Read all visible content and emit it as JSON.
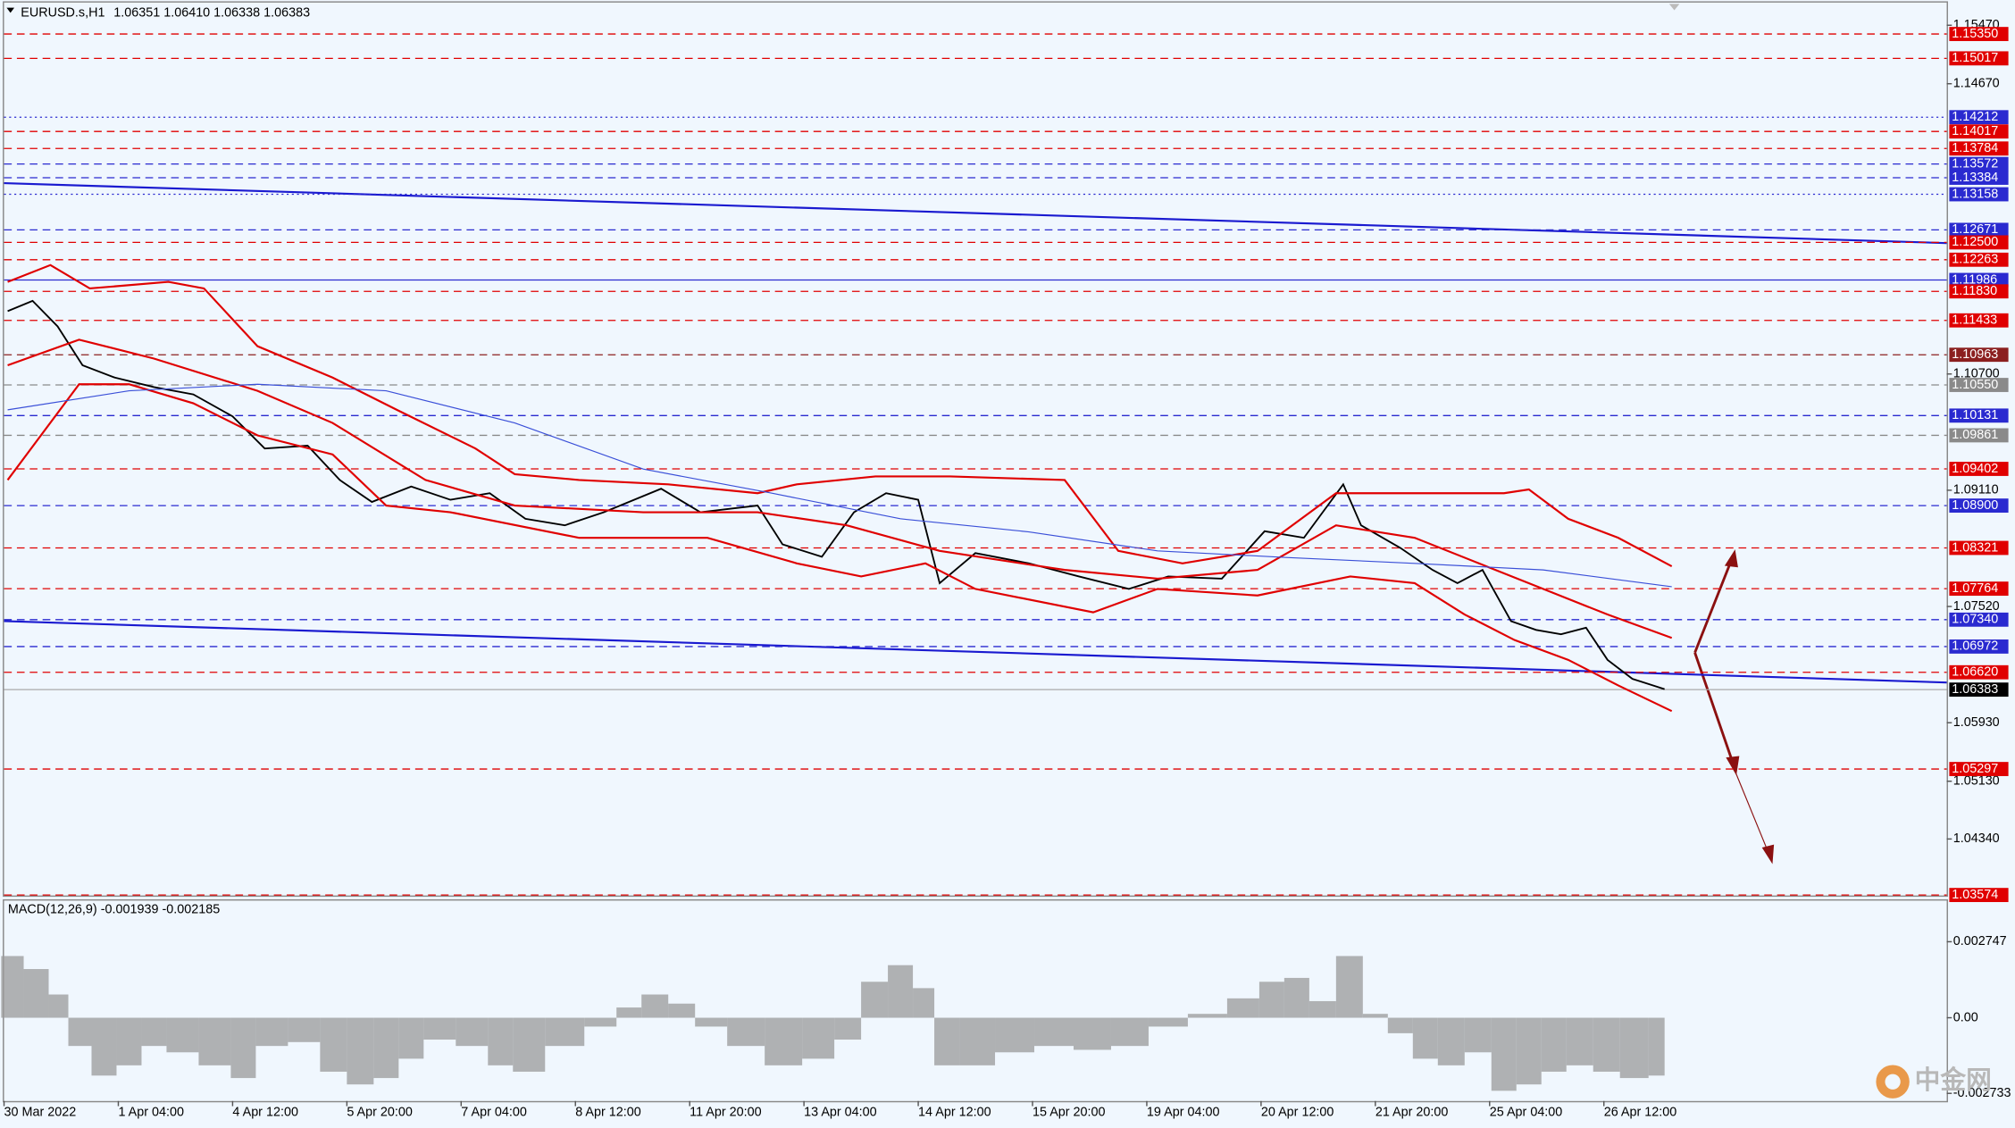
{
  "chart_data": [
    {
      "type": "line",
      "title": "EURUSD.s,H1",
      "info": [
        "1.06351",
        "1.06410",
        "1.06338",
        "1.06383"
      ],
      "xlim": [
        0,
        544
      ],
      "xticks": [
        {
          "value": 0,
          "label": "30 Mar 2022"
        },
        {
          "value": 32,
          "label": "1 Apr 04:00"
        },
        {
          "value": 64,
          "label": "4 Apr 12:00"
        },
        {
          "value": 96,
          "label": "5 Apr 20:00"
        },
        {
          "value": 128,
          "label": "7 Apr 04:00"
        },
        {
          "value": 160,
          "label": "8 Apr 12:00"
        },
        {
          "value": 192,
          "label": "11 Apr 20:00"
        },
        {
          "value": 224,
          "label": "13 Apr 04:00"
        },
        {
          "value": 256,
          "label": "14 Apr 12:00"
        },
        {
          "value": 288,
          "label": "15 Apr 20:00"
        },
        {
          "value": 320,
          "label": "19 Apr 04:00"
        },
        {
          "value": 352,
          "label": "20 Apr 12:00"
        },
        {
          "value": 384,
          "label": "21 Apr 20:00"
        },
        {
          "value": 416,
          "label": "25 Apr 04:00"
        },
        {
          "value": 448,
          "label": "26 Apr 12:00"
        }
      ],
      "ylim": [
        1.0355,
        1.1578
      ],
      "yticks": [
        {
          "value": 1.1547,
          "label": "1.15470"
        },
        {
          "value": 1.1467,
          "label": "1.14670"
        },
        {
          "value": 1.107,
          "label": "1.10700"
        },
        {
          "value": 1.0911,
          "label": "1.09110"
        },
        {
          "value": 1.0752,
          "label": "1.07520"
        },
        {
          "value": 1.0593,
          "label": "1.05930"
        },
        {
          "value": 1.0513,
          "label": "1.05130"
        },
        {
          "value": 1.0434,
          "label": "1.04340"
        }
      ],
      "series": [
        {
          "color": "#000000",
          "width": 1.3,
          "x": [
            1,
            8,
            15,
            22,
            31,
            42,
            53,
            64,
            73,
            85,
            94,
            103,
            114,
            125,
            136,
            146,
            157,
            168,
            184,
            195,
            211,
            218,
            229,
            238,
            247,
            256,
            262,
            272,
            287,
            301,
            315,
            326,
            341,
            353,
            364,
            375,
            380,
            391,
            400,
            407,
            414,
            422,
            429,
            436,
            443,
            449,
            456,
            465
          ],
          "values": [
            1.1156,
            1.117,
            1.1135,
            1.1082,
            1.1065,
            1.1052,
            1.1042,
            1.1012,
            1.0968,
            1.0972,
            1.0925,
            1.0895,
            1.0916,
            1.0898,
            1.0907,
            1.0872,
            1.0863,
            1.0881,
            1.0913,
            1.0881,
            1.089,
            1.0837,
            1.082,
            1.0881,
            1.0907,
            1.0898,
            1.0784,
            1.0825,
            1.0811,
            1.0793,
            1.0776,
            1.0793,
            1.079,
            1.0855,
            1.0846,
            1.0919,
            1.0863,
            1.0832,
            1.0802,
            1.0784,
            1.0802,
            1.0732,
            1.072,
            1.0714,
            1.0723,
            1.0679,
            1.0653,
            1.0639
          ]
        },
        {
          "color": "#e00000",
          "width": 1.5,
          "x": [
            1,
            13,
            24,
            46,
            56,
            71,
            92,
            110,
            132,
            143,
            161,
            186,
            211,
            222,
            244,
            265,
            297,
            312,
            330,
            351,
            373,
            391,
            420,
            427,
            438,
            452,
            467
          ],
          "values": [
            1.1196,
            1.1219,
            1.1187,
            1.1196,
            1.1187,
            1.1108,
            1.1065,
            1.1021,
            1.0968,
            1.0933,
            1.0925,
            1.0919,
            1.0907,
            1.0919,
            1.093,
            1.093,
            1.0925,
            1.0828,
            1.0811,
            1.0828,
            1.0907,
            1.0907,
            1.0907,
            1.0912,
            1.0872,
            1.0846,
            1.0807
          ]
        },
        {
          "color": "#e00000",
          "width": 1.5,
          "x": [
            1,
            21,
            42,
            71,
            92,
            118,
            143,
            179,
            211,
            236,
            262,
            297,
            323,
            351,
            373,
            395,
            413,
            431,
            449,
            467
          ],
          "values": [
            1.1082,
            1.1117,
            1.1091,
            1.1047,
            1.1003,
            1.0925,
            1.089,
            1.0881,
            1.0881,
            1.0863,
            1.0828,
            1.0802,
            1.079,
            1.0802,
            1.0863,
            1.0846,
            1.0811,
            1.0776,
            1.0741,
            1.0709
          ]
        },
        {
          "color": "#e00000",
          "width": 1.5,
          "x": [
            1,
            21,
            35,
            53,
            71,
            92,
            107,
            125,
            161,
            197,
            222,
            240,
            258,
            272,
            305,
            323,
            351,
            377,
            395,
            409,
            423,
            438,
            452,
            467
          ],
          "values": [
            1.0925,
            1.1056,
            1.1056,
            1.103,
            1.0986,
            1.096,
            1.089,
            1.0881,
            1.0846,
            1.0846,
            1.0811,
            1.0793,
            1.0811,
            1.0776,
            1.0744,
            1.0776,
            1.0767,
            1.0793,
            1.0784,
            1.0741,
            1.0706,
            1.0679,
            1.0644,
            1.0609
          ]
        },
        {
          "color": "#3a4fd8",
          "width": 0.8,
          "x": [
            1,
            35,
            71,
            107,
            143,
            179,
            215,
            251,
            287,
            323,
            359,
            395,
            431,
            467
          ],
          "values": [
            1.1021,
            1.1047,
            1.1056,
            1.1047,
            1.1003,
            1.094,
            1.0907,
            1.0872,
            1.0854,
            1.0828,
            1.0819,
            1.0811,
            1.0802,
            1.0779
          ]
        }
      ],
      "levels": [
        {
          "value": 1.1535,
          "label": "1.15350",
          "color": "#e00000",
          "style": "dashed"
        },
        {
          "value": 1.15017,
          "label": "1.15017",
          "color": "#e00000",
          "style": "dashed"
        },
        {
          "value": 1.14212,
          "label": "1.14212",
          "color": "#2a2ad0",
          "style": "dotted"
        },
        {
          "value": 1.14017,
          "label": "1.14017",
          "color": "#e00000",
          "style": "dashed"
        },
        {
          "value": 1.13784,
          "label": "1.13784",
          "color": "#e00000",
          "style": "dashed"
        },
        {
          "value": 1.13572,
          "label": "1.13572",
          "color": "#2a2ad0",
          "style": "dashed"
        },
        {
          "value": 1.13384,
          "label": "1.13384",
          "color": "#2a2ad0",
          "style": "dashed"
        },
        {
          "value": 1.13158,
          "label": "1.13158",
          "color": "#2a2ad0",
          "style": "dotted"
        },
        {
          "value": 1.12671,
          "label": "1.12671",
          "color": "#2a2ad0",
          "style": "dashed"
        },
        {
          "value": 1.125,
          "label": "1.12500",
          "color": "#e00000",
          "style": "dashed"
        },
        {
          "value": 1.12263,
          "label": "1.12263",
          "color": "#e00000",
          "style": "dashed"
        },
        {
          "value": 1.11986,
          "label": "1.11986",
          "color": "#2a2ad0",
          "style": "solid"
        },
        {
          "value": 1.1183,
          "label": "1.11830",
          "color": "#e00000",
          "style": "dashed"
        },
        {
          "value": 1.11433,
          "label": "1.11433",
          "color": "#e00000",
          "style": "dashed"
        },
        {
          "value": 1.10963,
          "label": "1.10963",
          "color": "#8b1f1f",
          "style": "dashed"
        },
        {
          "value": 1.1055,
          "label": "1.10550",
          "color": "#8a8a8a",
          "style": "dashed"
        },
        {
          "value": 1.10131,
          "label": "1.10131",
          "color": "#2a2ad0",
          "style": "dashed"
        },
        {
          "value": 1.09861,
          "label": "1.09861",
          "color": "#8a8a8a",
          "style": "dashed"
        },
        {
          "value": 1.09402,
          "label": "1.09402",
          "color": "#e00000",
          "style": "dashed"
        },
        {
          "value": 1.089,
          "label": "1.08900",
          "color": "#2a2ad0",
          "style": "dashed"
        },
        {
          "value": 1.08321,
          "label": "1.08321",
          "color": "#e00000",
          "style": "dashed"
        },
        {
          "value": 1.07764,
          "label": "1.07764",
          "color": "#e00000",
          "style": "dashed"
        },
        {
          "value": 1.0734,
          "label": "1.07340",
          "color": "#2a2ad0",
          "style": "dashed"
        },
        {
          "value": 1.06972,
          "label": "1.06972",
          "color": "#2a2ad0",
          "style": "dashed"
        },
        {
          "value": 1.0662,
          "label": "1.06620",
          "color": "#e00000",
          "style": "dashed"
        },
        {
          "value": 1.06383,
          "label": "1.06383",
          "color": "#000000",
          "style": "solid"
        },
        {
          "value": 1.05297,
          "label": "1.05297",
          "color": "#e00000",
          "style": "dashed"
        },
        {
          "value": 1.03574,
          "label": "1.03574",
          "color": "#e00000",
          "style": "dashed"
        }
      ],
      "trendlines": [
        {
          "color": "#1a1ad0",
          "x": [
            0,
            544
          ],
          "values": [
            1.1331,
            1.1249
          ]
        },
        {
          "color": "#1a1ad0",
          "x": [
            0,
            544
          ],
          "values": [
            1.0732,
            1.0648
          ]
        }
      ]
    },
    {
      "type": "bar",
      "title": "MACD(12,26,9)",
      "info": [
        "-0.001939",
        "-0.002185"
      ],
      "color": "#9a9a9a",
      "xlim": [
        0,
        544
      ],
      "ylim": [
        -0.00301,
        0.00428
      ],
      "yticks": [
        0.002747,
        {
          "value": 0,
          "label": "0.00"
        },
        -0.002733
      ],
      "x": [
        1,
        10,
        15,
        21,
        28,
        35,
        42,
        49,
        60,
        67,
        74,
        85,
        92,
        100,
        107,
        114,
        121,
        132,
        139,
        146,
        157,
        168,
        175,
        182,
        190,
        197,
        208,
        218,
        229,
        236,
        244,
        251,
        258,
        263,
        272,
        283,
        294,
        305,
        315,
        326,
        337,
        348,
        355,
        362,
        369,
        377,
        384,
        391,
        398,
        405,
        413,
        420,
        427,
        434,
        441,
        449,
        456,
        465
      ],
      "values": [
        0.00223,
        0.00176,
        0.00084,
        -0.00102,
        -0.00209,
        -0.00172,
        -0.00102,
        -0.00125,
        -0.00172,
        -0.00218,
        -0.00102,
        -0.00088,
        -0.00195,
        -0.00241,
        -0.00218,
        -0.00148,
        -0.00079,
        -0.00102,
        -0.00172,
        -0.00195,
        -0.00102,
        -0.00032,
        0.00037,
        0.00084,
        0.00051,
        -0.00032,
        -0.00102,
        -0.00172,
        -0.00148,
        -0.00079,
        0.0013,
        0.0019,
        0.00107,
        -0.00172,
        -0.00172,
        -0.00125,
        -0.00102,
        -0.00116,
        -0.00102,
        -0.00032,
        0.00014,
        0.0007,
        0.0013,
        0.00144,
        0.0006,
        0.00223,
        0.00014,
        -0.00056,
        -0.00148,
        -0.00172,
        -0.00125,
        -0.00264,
        -0.00241,
        -0.00195,
        -0.00172,
        -0.00195,
        -0.00218,
        -0.00209
      ]
    }
  ],
  "watermark": "中金网"
}
